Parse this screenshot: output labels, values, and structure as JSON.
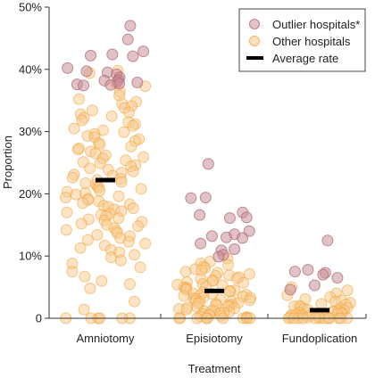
{
  "chart_data": {
    "type": "scatter",
    "subtype": "jittered strip plot with mean bars",
    "xlabel": "Treatment",
    "ylabel": "Proportion",
    "ylim": [
      0,
      0.5
    ],
    "y_ticks": [
      0,
      0.1,
      0.2,
      0.3,
      0.4,
      0.5
    ],
    "y_tick_labels": [
      "0",
      "10%",
      "20%",
      "30%",
      "40%",
      "50%"
    ],
    "grid": false,
    "legend_position": "top-right",
    "legend": [
      {
        "key": "outlier",
        "label": "Outlier hospitals*"
      },
      {
        "key": "other",
        "label": "Other hospitals"
      },
      {
        "key": "average",
        "label": "Average rate"
      }
    ],
    "colors": {
      "outlier_fill": "#c98f97",
      "outlier_stroke": "#b06a74",
      "other_fill": "#f9c98c",
      "other_stroke": "#f0a540",
      "average": "#000000",
      "axis": "#333333"
    },
    "categories": [
      {
        "name": "Amniotomy",
        "average": 0.222,
        "outliers": [
          0.47,
          0.448,
          0.429,
          0.424,
          0.421,
          0.422,
          0.402,
          0.397,
          0.395,
          0.392,
          0.387,
          0.383,
          0.382,
          0.38,
          0.379,
          0.377,
          0.376,
          0.375,
          0.374
        ],
        "others": [
          0.398,
          0.394,
          0.378,
          0.373,
          0.364,
          0.358,
          0.352,
          0.348,
          0.345,
          0.341,
          0.338,
          0.334,
          0.331,
          0.328,
          0.325,
          0.322,
          0.318,
          0.315,
          0.312,
          0.309,
          0.305,
          0.302,
          0.299,
          0.296,
          0.293,
          0.291,
          0.288,
          0.285,
          0.282,
          0.279,
          0.276,
          0.273,
          0.271,
          0.268,
          0.265,
          0.262,
          0.259,
          0.257,
          0.254,
          0.251,
          0.249,
          0.246,
          0.244,
          0.241,
          0.239,
          0.236,
          0.234,
          0.231,
          0.229,
          0.226,
          0.224,
          0.222,
          0.219,
          0.217,
          0.215,
          0.212,
          0.21,
          0.208,
          0.205,
          0.203,
          0.201,
          0.199,
          0.196,
          0.194,
          0.192,
          0.19,
          0.188,
          0.185,
          0.183,
          0.181,
          0.179,
          0.177,
          0.175,
          0.172,
          0.17,
          0.168,
          0.166,
          0.164,
          0.161,
          0.159,
          0.157,
          0.155,
          0.152,
          0.15,
          0.148,
          0.145,
          0.142,
          0.14,
          0.137,
          0.134,
          0.132,
          0.129,
          0.126,
          0.123,
          0.12,
          0.117,
          0.113,
          0.11,
          0.106,
          0.102,
          0.098,
          0.093,
          0.088,
          0.082,
          0.075,
          0.067,
          0.06,
          0.055,
          0.048,
          0.027,
          0.014,
          0.0,
          0.0,
          0.0,
          0.0,
          0.0,
          0.0
        ]
      },
      {
        "name": "Episiotomy",
        "average": 0.044,
        "outliers": [
          0.248,
          0.194,
          0.193,
          0.17,
          0.166,
          0.162,
          0.161,
          0.14,
          0.135,
          0.132,
          0.13,
          0.129,
          0.12,
          0.111,
          0.109,
          0.102,
          0.099
        ],
        "others": [
          0.096,
          0.091,
          0.088,
          0.086,
          0.083,
          0.081,
          0.079,
          0.077,
          0.075,
          0.073,
          0.071,
          0.069,
          0.068,
          0.066,
          0.064,
          0.063,
          0.061,
          0.06,
          0.058,
          0.057,
          0.055,
          0.054,
          0.053,
          0.051,
          0.05,
          0.049,
          0.048,
          0.046,
          0.045,
          0.044,
          0.043,
          0.042,
          0.04,
          0.039,
          0.038,
          0.037,
          0.036,
          0.035,
          0.034,
          0.033,
          0.032,
          0.031,
          0.03,
          0.029,
          0.028,
          0.027,
          0.026,
          0.025,
          0.024,
          0.023,
          0.022,
          0.021,
          0.02,
          0.019,
          0.018,
          0.017,
          0.016,
          0.015,
          0.014,
          0.013,
          0.012,
          0.011,
          0.01,
          0.009,
          0.008,
          0.007,
          0.006,
          0.005,
          0.004,
          0.003,
          0.002,
          0.001,
          0.0,
          0.0,
          0.0,
          0.0,
          0.0,
          0.0,
          0.0,
          0.0,
          0.0,
          0.0
        ]
      },
      {
        "name": "Fundoplication",
        "average": 0.013,
        "outliers": [
          0.125,
          0.078,
          0.075,
          0.073,
          0.07,
          0.065,
          0.053,
          0.046
        ],
        "others": [
          0.05,
          0.045,
          0.04,
          0.037,
          0.034,
          0.031,
          0.029,
          0.027,
          0.025,
          0.023,
          0.022,
          0.02,
          0.019,
          0.018,
          0.017,
          0.016,
          0.015,
          0.014,
          0.013,
          0.012,
          0.011,
          0.01,
          0.009,
          0.009,
          0.008,
          0.007,
          0.006,
          0.006,
          0.005,
          0.004,
          0.004,
          0.003,
          0.002,
          0.002,
          0.001,
          0.001,
          0.0,
          0.0,
          0.0,
          0.0,
          0.0,
          0.0,
          0.0,
          0.0,
          0.0,
          0.0,
          0.0,
          0.0
        ]
      }
    ]
  }
}
